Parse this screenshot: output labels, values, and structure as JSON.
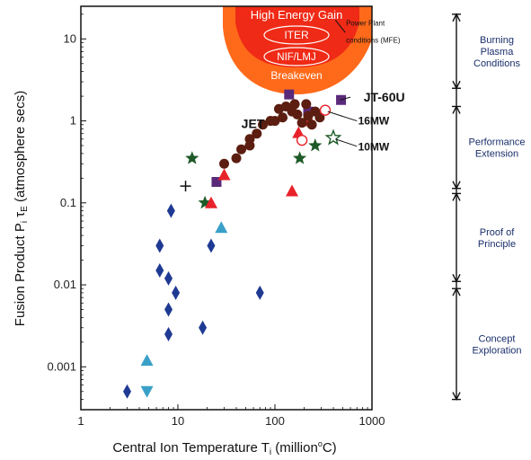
{
  "chart_data": {
    "type": "scatter",
    "title": "",
    "xlabel": "Central Ion Temperature T",
    "xlabel_sub": "i",
    "xlabel_unit": " (million",
    "xlabel_sup": "o",
    "xlabel_end": "C)",
    "ylabel": "Fusion Product P",
    "ylabel_sub1": "i",
    "ylabel_tau": " τ",
    "ylabel_sub2": "E",
    "ylabel_unit": " (atmosphere secs)",
    "x_scale": "log",
    "y_scale": "log",
    "xlim": [
      1,
      1000
    ],
    "ylim": [
      0.0003,
      25
    ],
    "x_ticks": [
      {
        "value": 1,
        "label": "1"
      },
      {
        "value": 10,
        "label": "10"
      },
      {
        "value": 100,
        "label": "100"
      },
      {
        "value": 1000,
        "label": "1000"
      }
    ],
    "y_ticks": [
      {
        "value": 0.001,
        "label": "0.001"
      },
      {
        "value": 0.01,
        "label": "0.01"
      },
      {
        "value": 0.1,
        "label": "0.1"
      },
      {
        "value": 1,
        "label": "1"
      },
      {
        "value": 10,
        "label": "10"
      }
    ],
    "regions": {
      "labels": [
        "High Energy Gain",
        "ITER",
        "NIF/LMJ",
        "Breakeven"
      ],
      "colors": {
        "outer": "#ff6a1a",
        "inner": "#ef2a16",
        "text": "#ffffff"
      }
    },
    "series": [
      {
        "marker": "diamond",
        "color": "#1f3a93",
        "points": [
          [
            3,
            0.0005
          ],
          [
            6.5,
            0.03
          ],
          [
            6.5,
            0.015
          ],
          [
            8,
            0.012
          ],
          [
            8.5,
            0.08
          ],
          [
            8,
            0.005
          ],
          [
            8,
            0.0025
          ],
          [
            9.5,
            0.008
          ],
          [
            18,
            0.003
          ],
          [
            22,
            0.03
          ],
          [
            70,
            0.008
          ]
        ]
      },
      {
        "marker": "triangle-up",
        "color": "#3aa0c8",
        "points": [
          [
            4.8,
            0.0012
          ],
          [
            28,
            0.05
          ]
        ]
      },
      {
        "marker": "triangle-down",
        "color": "#3aa0c8",
        "points": [
          [
            4.8,
            0.0005
          ]
        ]
      },
      {
        "marker": "star",
        "color": "#1e5a28",
        "points": [
          [
            14,
            0.35
          ],
          [
            19,
            0.1
          ],
          [
            180,
            0.35
          ],
          [
            260,
            0.5
          ]
        ]
      },
      {
        "marker": "star-open",
        "color": "#1e5a28",
        "points": [
          [
            400,
            0.62
          ]
        ]
      },
      {
        "marker": "square",
        "color": "#5a2a7a",
        "points": [
          [
            25,
            0.18
          ],
          [
            140,
            2.1
          ],
          [
            220,
            1.3
          ],
          [
            480,
            1.8
          ]
        ]
      },
      {
        "marker": "plus",
        "color": "#111111",
        "points": [
          [
            12,
            0.16
          ]
        ]
      },
      {
        "marker": "triangle-up-filled",
        "color": "#e8222a",
        "points": [
          [
            22,
            0.1
          ],
          [
            30,
            0.22
          ],
          [
            150,
            0.14
          ],
          [
            175,
            0.72
          ],
          [
            230,
            1.0
          ]
        ]
      },
      {
        "marker": "circle",
        "color": "#5b1e10",
        "points": [
          [
            30,
            0.3
          ],
          [
            40,
            0.35
          ],
          [
            45,
            0.45
          ],
          [
            55,
            0.5
          ],
          [
            55,
            0.6
          ],
          [
            65,
            0.7
          ],
          [
            75,
            0.9
          ],
          [
            90,
            1.0
          ],
          [
            100,
            1.0
          ],
          [
            110,
            1.4
          ],
          [
            120,
            1.1
          ],
          [
            130,
            1.5
          ],
          [
            150,
            1.3
          ],
          [
            160,
            1.6
          ],
          [
            170,
            1.2
          ],
          [
            190,
            0.95
          ],
          [
            210,
            1.6
          ],
          [
            220,
            1.15
          ],
          [
            240,
            0.9
          ],
          [
            260,
            1.3
          ],
          [
            290,
            1.1
          ]
        ]
      },
      {
        "marker": "circle-open",
        "color": "#e8222a",
        "points": [
          [
            190,
            0.58
          ],
          [
            330,
            1.35
          ]
        ]
      }
    ],
    "annotations": [
      {
        "text": "Power Plant",
        "x": 540,
        "y": 16,
        "size": "small"
      },
      {
        "text": "conditions (MFE)",
        "x": 540,
        "y": 10,
        "size": "small"
      },
      {
        "text": "JT-60U",
        "x": 820,
        "y": 1.9,
        "size": "large"
      },
      {
        "text": "JET",
        "x": 78,
        "y": 0.9,
        "size": "large"
      },
      {
        "text": "16MW",
        "x": 720,
        "y": 1.0,
        "size": "medium"
      },
      {
        "text": "10MW",
        "x": 720,
        "y": 0.48,
        "size": "medium"
      }
    ],
    "stages": [
      {
        "lines": [
          "Burning",
          "Plasma",
          "Conditions"
        ],
        "range": [
          2.5,
          20
        ]
      },
      {
        "lines": [
          "Performance",
          "Extension"
        ],
        "range": [
          0.15,
          1.5
        ]
      },
      {
        "lines": [
          "Proof of",
          "Principle"
        ],
        "range": [
          0.011,
          0.13
        ]
      },
      {
        "lines": [
          "Concept",
          "Exploration"
        ],
        "range": [
          0.0004,
          0.009
        ]
      }
    ]
  }
}
